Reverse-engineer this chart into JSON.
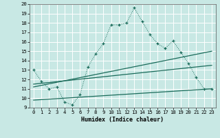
{
  "xlabel": "Humidex (Indice chaleur)",
  "bg_color": "#c8e8e4",
  "grid_color": "#ffffff",
  "line_color": "#1a6b5a",
  "ylim": [
    9,
    20
  ],
  "xlim": [
    -0.5,
    23.5
  ],
  "yticks": [
    9,
    10,
    11,
    12,
    13,
    14,
    15,
    16,
    17,
    18,
    19,
    20
  ],
  "xticks": [
    0,
    1,
    2,
    3,
    4,
    5,
    6,
    7,
    8,
    9,
    10,
    11,
    12,
    13,
    14,
    15,
    16,
    17,
    18,
    19,
    20,
    21,
    22,
    23
  ],
  "series_main": {
    "x": [
      0,
      1,
      2,
      3,
      4,
      5,
      6,
      7,
      8,
      9,
      10,
      11,
      12,
      13,
      14,
      15,
      16,
      17,
      18,
      19,
      20,
      21,
      22,
      23
    ],
    "y": [
      13,
      11.8,
      11.0,
      11.2,
      9.6,
      9.3,
      10.4,
      13.3,
      14.7,
      15.8,
      17.8,
      17.8,
      18.0,
      19.6,
      18.2,
      16.8,
      15.8,
      15.3,
      16.1,
      14.9,
      13.7,
      12.2,
      11.0,
      11.0
    ]
  },
  "series_lines": [
    {
      "x": [
        0,
        23
      ],
      "y": [
        11.2,
        15.0
      ]
    },
    {
      "x": [
        0,
        23
      ],
      "y": [
        11.5,
        13.5
      ]
    },
    {
      "x": [
        0,
        23
      ],
      "y": [
        9.8,
        11.0
      ]
    }
  ]
}
